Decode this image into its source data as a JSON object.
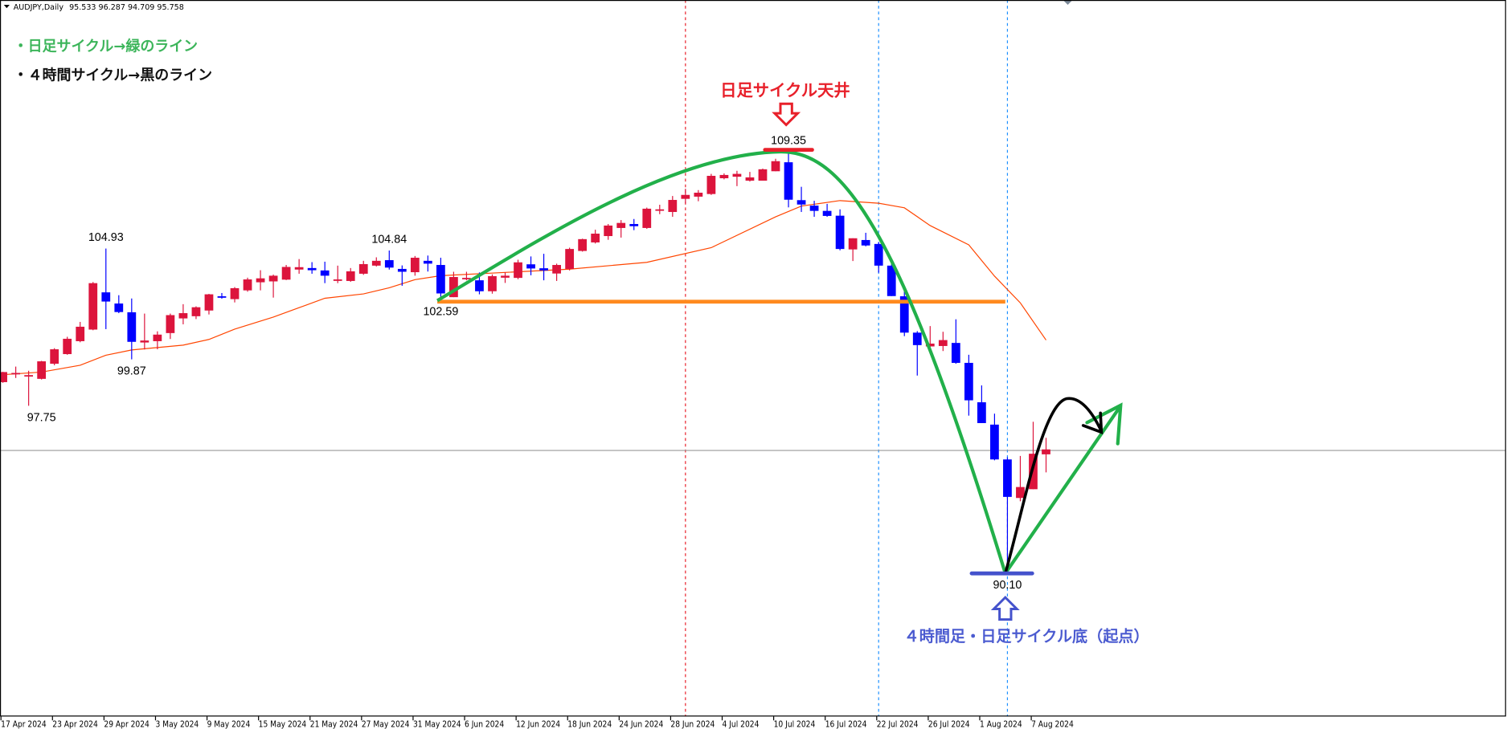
{
  "header": {
    "symbol": "AUDJPY,Daily",
    "ohlc": "95.533 96.287 94.709 95.758",
    "menu_icon": "triangle-down-icon"
  },
  "legend_notes": {
    "daily": {
      "text": "・日足サイクル→緑のライン",
      "color": "#3cb55a"
    },
    "h4": {
      "text": "・４時間サイクル→黒のライン",
      "color": "#111111"
    }
  },
  "annotations": {
    "top": {
      "text": "日足サイクル天井",
      "color": "#e8202a"
    },
    "bottom": {
      "text": "４時間足・日足サイクル底（起点）",
      "color": "#4b5bd0"
    },
    "support_color": "#ff8a1e",
    "daily_cycle_color": "#22b04a",
    "h4_cycle_color": "#000000"
  },
  "chart_data": {
    "type": "candlestick",
    "title": "",
    "bull_color": "#dc143c",
    "bear_color": "#0000ff",
    "ma_color": "#ff4500",
    "ylim": [
      87.6,
      115.8
    ],
    "grid": false,
    "current_price_line": 95.71,
    "support_level": 102.59,
    "vertical_lines": [
      {
        "date": "2024-07-01",
        "color": "#e8202a"
      },
      {
        "date": "2024-07-22",
        "color": "#1e90ff"
      },
      {
        "date": "2024-08-05",
        "color": "#1e90ff"
      }
    ],
    "price_labels": [
      {
        "date": "2024-04-22",
        "text": "97.75",
        "price": 97.75,
        "pos": "below"
      },
      {
        "date": "2024-04-29",
        "text": "104.93",
        "price": 104.93,
        "pos": "above"
      },
      {
        "date": "2024-05-01",
        "text": "99.87",
        "price": 99.87,
        "pos": "below"
      },
      {
        "date": "2024-05-29",
        "text": "104.84",
        "price": 104.84,
        "pos": "above"
      },
      {
        "date": "2024-06-04",
        "text": "102.59",
        "price": 102.59,
        "pos": "below"
      },
      {
        "date": "2024-07-11",
        "text": "109.35",
        "price": 109.35,
        "pos": "above"
      },
      {
        "date": "2024-08-05",
        "text": "90.10",
        "price": 90.1,
        "pos": "below"
      }
    ],
    "x_tick_labels": [
      "17 Apr 2024",
      "23 Apr 2024",
      "29 Apr 2024",
      "3 May 2024",
      "9 May 2024",
      "15 May 2024",
      "21 May 2024",
      "27 May 2024",
      "31 May 2024",
      "6 Jun 2024",
      "12 Jun 2024",
      "18 Jun 2024",
      "24 Jun 2024",
      "28 Jun 2024",
      "4 Jul 2024",
      "10 Jul 2024",
      "16 Jul 2024",
      "22 Jul 2024",
      "26 Jul 2024",
      "1 Aug 2024",
      "7 Aug 2024"
    ],
    "candles_columns": [
      "date",
      "open",
      "high",
      "low",
      "close"
    ],
    "candles": [
      [
        "2024-04-17",
        98.83,
        99.3,
        98.8,
        99.29
      ],
      [
        "2024-04-18",
        99.2,
        99.54,
        99.02,
        99.25
      ],
      [
        "2024-04-19",
        99.1,
        99.35,
        97.75,
        99.15
      ],
      [
        "2024-04-22",
        98.98,
        99.8,
        98.95,
        99.78
      ],
      [
        "2024-04-23",
        99.67,
        100.38,
        99.6,
        100.33
      ],
      [
        "2024-04-24",
        100.11,
        100.9,
        100.08,
        100.81
      ],
      [
        "2024-04-25",
        100.7,
        101.58,
        100.65,
        101.36
      ],
      [
        "2024-04-26",
        101.23,
        103.4,
        101.2,
        103.35
      ],
      [
        "2024-04-29",
        102.93,
        104.93,
        101.25,
        102.51
      ],
      [
        "2024-04-30",
        102.42,
        102.8,
        101.98,
        102.03
      ],
      [
        "2024-05-01",
        102.02,
        102.65,
        99.87,
        100.67
      ],
      [
        "2024-05-02",
        100.64,
        101.96,
        100.32,
        100.73
      ],
      [
        "2024-05-03",
        100.7,
        101.15,
        100.33,
        101.0
      ],
      [
        "2024-05-06",
        101.07,
        101.96,
        100.8,
        101.89
      ],
      [
        "2024-05-07",
        101.74,
        102.39,
        101.47,
        101.98
      ],
      [
        "2024-05-08",
        101.84,
        102.29,
        101.71,
        102.25
      ],
      [
        "2024-05-09",
        102.1,
        102.86,
        101.92,
        102.84
      ],
      [
        "2024-05-10",
        102.75,
        102.9,
        102.64,
        102.72
      ],
      [
        "2024-05-13",
        102.62,
        103.17,
        102.47,
        103.12
      ],
      [
        "2024-05-14",
        103.02,
        103.6,
        102.96,
        103.52
      ],
      [
        "2024-05-15",
        103.39,
        103.94,
        103.02,
        103.57
      ],
      [
        "2024-05-16",
        103.43,
        103.74,
        102.69,
        103.69
      ],
      [
        "2024-05-17",
        103.51,
        104.18,
        103.49,
        104.09
      ],
      [
        "2024-05-20",
        103.97,
        104.45,
        103.78,
        104.08
      ],
      [
        "2024-05-21",
        104.04,
        104.31,
        103.78,
        103.94
      ],
      [
        "2024-05-22",
        103.93,
        104.33,
        103.35,
        103.69
      ],
      [
        "2024-05-23",
        103.49,
        104.15,
        103.35,
        103.52
      ],
      [
        "2024-05-24",
        103.45,
        104.04,
        103.41,
        103.89
      ],
      [
        "2024-05-27",
        103.78,
        104.37,
        103.73,
        104.22
      ],
      [
        "2024-05-28",
        104.15,
        104.53,
        104.11,
        104.37
      ],
      [
        "2024-05-29",
        104.4,
        104.84,
        103.97,
        104.06
      ],
      [
        "2024-05-30",
        104.0,
        104.16,
        103.23,
        103.87
      ],
      [
        "2024-05-31",
        103.85,
        104.59,
        103.69,
        104.51
      ],
      [
        "2024-06-03",
        104.37,
        104.61,
        103.88,
        104.24
      ],
      [
        "2024-06-04",
        104.18,
        104.51,
        102.59,
        102.88
      ],
      [
        "2024-06-05",
        102.71,
        103.87,
        102.71,
        103.63
      ],
      [
        "2024-06-06",
        103.53,
        103.87,
        103.48,
        103.59
      ],
      [
        "2024-06-07",
        103.48,
        103.84,
        102.84,
        102.98
      ],
      [
        "2024-06-10",
        102.98,
        103.75,
        102.87,
        103.67
      ],
      [
        "2024-06-11",
        103.6,
        103.84,
        103.36,
        103.69
      ],
      [
        "2024-06-12",
        103.59,
        104.42,
        103.53,
        104.3
      ],
      [
        "2024-06-13",
        104.21,
        104.57,
        103.71,
        104.02
      ],
      [
        "2024-06-14",
        104.03,
        104.69,
        103.48,
        103.93
      ],
      [
        "2024-06-17",
        103.79,
        104.24,
        103.45,
        104.18
      ],
      [
        "2024-06-18",
        104.0,
        104.97,
        103.93,
        104.91
      ],
      [
        "2024-06-19",
        104.82,
        105.38,
        104.79,
        105.36
      ],
      [
        "2024-06-20",
        105.21,
        105.79,
        105.16,
        105.61
      ],
      [
        "2024-06-21",
        105.5,
        106.05,
        105.33,
        105.98
      ],
      [
        "2024-06-24",
        105.87,
        106.23,
        105.43,
        106.1
      ],
      [
        "2024-06-25",
        106.05,
        106.28,
        105.77,
        105.95
      ],
      [
        "2024-06-26",
        105.87,
        106.8,
        105.83,
        106.75
      ],
      [
        "2024-06-27",
        106.69,
        106.93,
        106.5,
        106.72
      ],
      [
        "2024-06-28",
        106.6,
        107.33,
        106.38,
        107.15
      ],
      [
        "2024-07-01",
        107.2,
        107.66,
        106.99,
        107.38
      ],
      [
        "2024-07-02",
        107.3,
        107.6,
        107.09,
        107.48
      ],
      [
        "2024-07-03",
        107.42,
        108.34,
        107.38,
        108.25
      ],
      [
        "2024-07-04",
        108.14,
        108.36,
        108.09,
        108.29
      ],
      [
        "2024-07-05",
        108.21,
        108.48,
        107.78,
        108.34
      ],
      [
        "2024-07-08",
        108.03,
        108.43,
        107.99,
        108.18
      ],
      [
        "2024-07-09",
        108.03,
        108.58,
        108.03,
        108.55
      ],
      [
        "2024-07-10",
        108.46,
        109.03,
        108.46,
        108.92
      ],
      [
        "2024-07-11",
        108.87,
        109.35,
        106.81,
        107.16
      ],
      [
        "2024-07-12",
        107.14,
        107.75,
        106.6,
        106.94
      ],
      [
        "2024-07-15",
        106.89,
        107.11,
        106.38,
        106.65
      ],
      [
        "2024-07-16",
        106.65,
        106.97,
        106.38,
        106.42
      ],
      [
        "2024-07-17",
        106.43,
        106.72,
        104.85,
        104.91
      ],
      [
        "2024-07-18",
        104.89,
        105.4,
        104.36,
        105.4
      ],
      [
        "2024-07-19",
        105.32,
        105.65,
        105.03,
        105.07
      ],
      [
        "2024-07-22",
        105.14,
        105.23,
        103.83,
        104.15
      ],
      [
        "2024-07-23",
        104.15,
        104.24,
        102.76,
        102.76
      ],
      [
        "2024-07-24",
        102.75,
        102.99,
        100.93,
        101.09
      ],
      [
        "2024-07-25",
        101.09,
        101.16,
        99.13,
        100.52
      ],
      [
        "2024-07-26",
        100.46,
        101.39,
        100.21,
        100.59
      ],
      [
        "2024-07-29",
        100.48,
        101.13,
        100.25,
        100.75
      ],
      [
        "2024-07-30",
        100.62,
        101.7,
        99.67,
        99.71
      ],
      [
        "2024-07-31",
        99.71,
        100.08,
        97.3,
        98.0
      ],
      [
        "2024-08-01",
        97.91,
        98.68,
        96.96,
        96.96
      ],
      [
        "2024-08-02",
        96.89,
        97.39,
        95.26,
        95.3
      ],
      [
        "2024-08-05",
        95.3,
        95.4,
        90.1,
        93.59
      ],
      [
        "2024-08-06",
        93.54,
        95.46,
        93.39,
        94.04
      ],
      [
        "2024-08-07",
        93.94,
        97.02,
        93.94,
        95.56
      ],
      [
        "2024-08-08",
        95.533,
        96.287,
        94.709,
        95.758
      ]
    ],
    "moving_average": [
      [
        "2024-04-17",
        99.17
      ],
      [
        "2024-04-22",
        99.29
      ],
      [
        "2024-04-25",
        99.6
      ],
      [
        "2024-04-29",
        100.06
      ],
      [
        "2024-05-01",
        100.3
      ],
      [
        "2024-05-07",
        100.52
      ],
      [
        "2024-05-09",
        100.78
      ],
      [
        "2024-05-13",
        101.25
      ],
      [
        "2024-05-16",
        101.8
      ],
      [
        "2024-05-20",
        102.23
      ],
      [
        "2024-05-22",
        102.66
      ],
      [
        "2024-05-27",
        102.86
      ],
      [
        "2024-05-29",
        103.14
      ],
      [
        "2024-05-31",
        103.51
      ],
      [
        "2024-06-04",
        103.69
      ],
      [
        "2024-06-18",
        103.99
      ],
      [
        "2024-06-26",
        104.3
      ],
      [
        "2024-07-03",
        104.97
      ],
      [
        "2024-07-10",
        106.38
      ],
      [
        "2024-07-12",
        106.87
      ],
      [
        "2024-07-17",
        107.12
      ],
      [
        "2024-07-22",
        107.0
      ],
      [
        "2024-07-24",
        106.79
      ],
      [
        "2024-07-26",
        105.98
      ],
      [
        "2024-07-31",
        105.1
      ],
      [
        "2024-08-02",
        103.67
      ],
      [
        "2024-08-06",
        102.45
      ],
      [
        "2024-08-08",
        100.75
      ]
    ]
  }
}
